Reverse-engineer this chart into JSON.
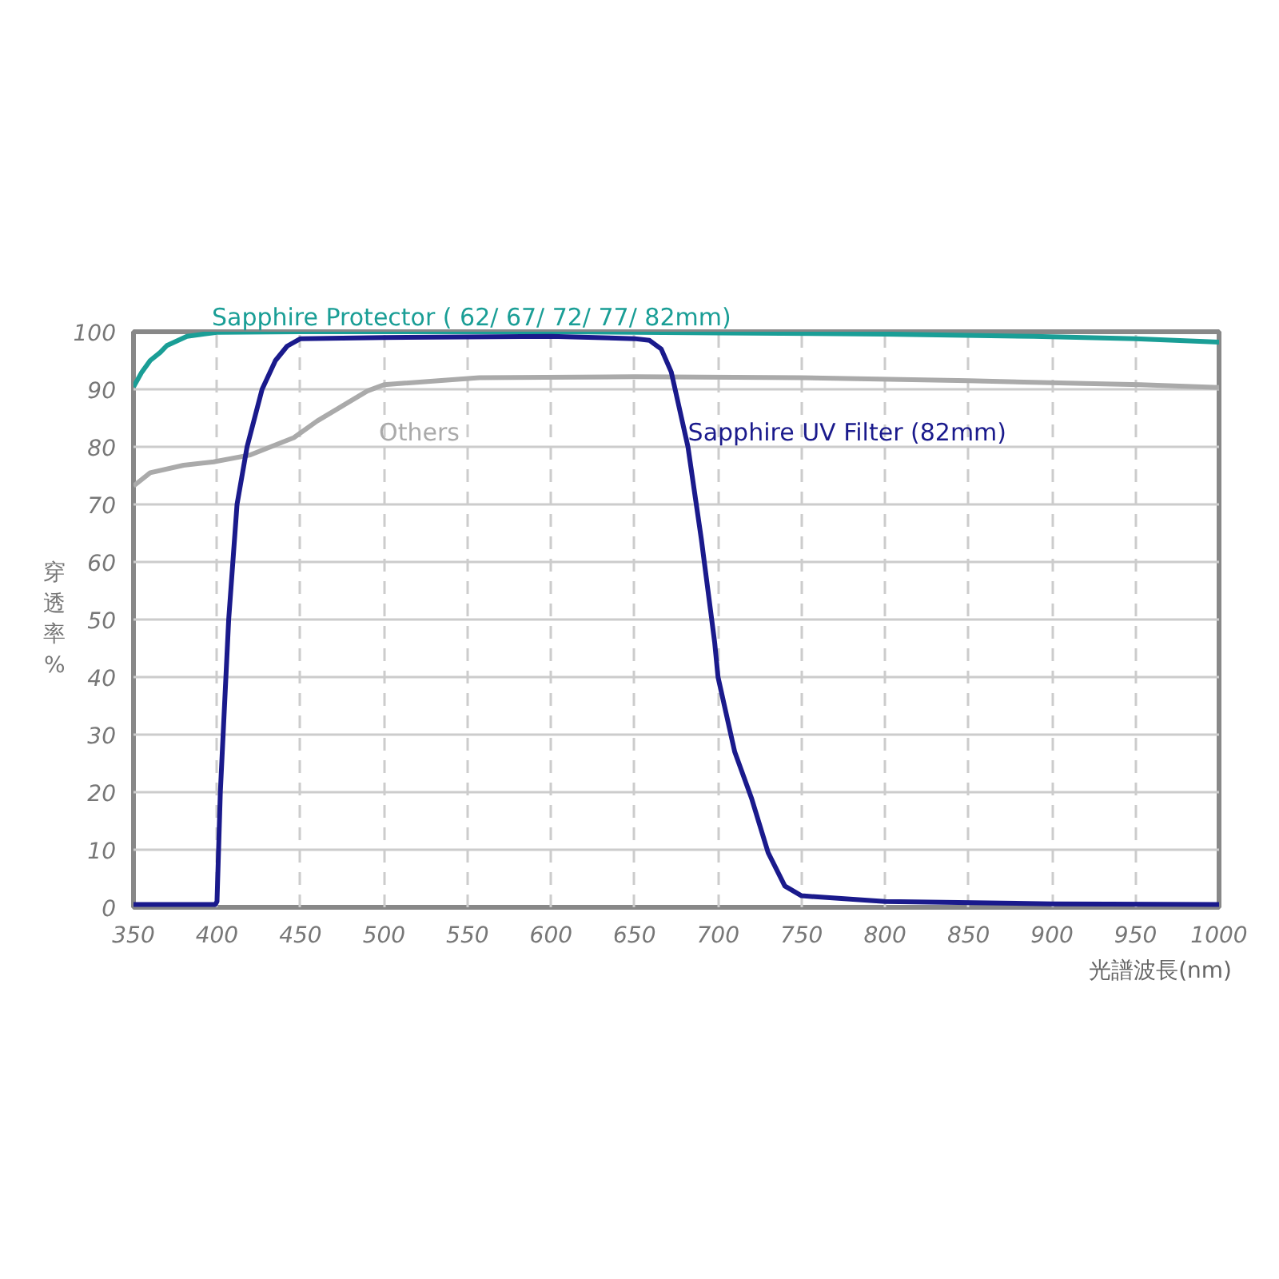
{
  "chart_data": {
    "type": "line",
    "xlabel": "光譜波長(nm)",
    "ylabel": "穿透率%",
    "xlim": [
      350,
      1000
    ],
    "ylim": [
      0,
      100
    ],
    "xticks": [
      350,
      400,
      450,
      500,
      550,
      600,
      650,
      700,
      750,
      800,
      850,
      900,
      950,
      1000
    ],
    "yticks": [
      0,
      10,
      20,
      30,
      40,
      50,
      60,
      70,
      80,
      90,
      100
    ],
    "grid": true,
    "line_style": "solid",
    "marker": "none",
    "series": [
      {
        "name": "Sapphire Protector ( 62/ 67/ 72/ 77/ 82mm)",
        "color": "#1a9e96",
        "x": [
          350,
          355,
          360,
          366,
          370,
          382,
          400,
          450,
          600,
          700,
          800,
          889,
          950,
          1000
        ],
        "values": [
          90.4,
          93,
          95,
          96.4,
          97.6,
          99.2,
          99.9,
          100,
          100,
          99.8,
          99.6,
          99.2,
          98.8,
          98.2
        ]
      },
      {
        "name": "Others",
        "color": "#aaaaaa",
        "x": [
          350,
          360,
          380,
          398,
          420,
          446,
          460,
          475,
          490,
          500,
          557,
          650,
          750,
          850,
          920,
          953,
          1000
        ],
        "values": [
          73.2,
          75.5,
          76.8,
          77.4,
          78.6,
          81.6,
          84.5,
          87.1,
          89.7,
          90.8,
          92,
          92.2,
          92,
          91.5,
          91,
          90.8,
          90.3
        ]
      },
      {
        "name": "Sapphire UV Filter (82mm)",
        "color": "#1a1a8c",
        "x": [
          350,
          399,
          400,
          402,
          407,
          412,
          418,
          427,
          435,
          442,
          450,
          500,
          600,
          650,
          659,
          666,
          672,
          682,
          690,
          698,
          700,
          710,
          720,
          730,
          740,
          750,
          800,
          900,
          1000
        ],
        "values": [
          0.5,
          0.5,
          1,
          20,
          50,
          70,
          80,
          90,
          95,
          97.5,
          98.8,
          99,
          99.2,
          98.8,
          98.5,
          97,
          93,
          80,
          64,
          46,
          40,
          27,
          19,
          9.5,
          3.7,
          2,
          1,
          0.6,
          0.5
        ]
      }
    ]
  }
}
